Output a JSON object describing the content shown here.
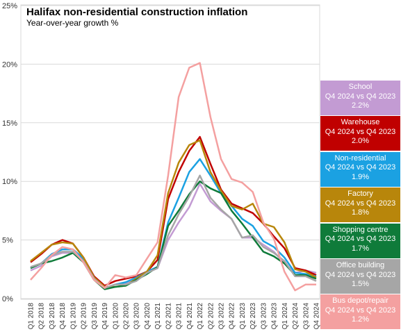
{
  "chart_data": {
    "type": "line",
    "title": "Halifax non-residential  construction inflation",
    "subtitle": "Year-over-year  growth %",
    "ylim": [
      0,
      25
    ],
    "yticks": [
      "0%",
      "5%",
      "10%",
      "15%",
      "20%",
      "25%"
    ],
    "grid": true,
    "legend_position": "right",
    "categories": [
      "Q1 2018",
      "Q2 2018",
      "Q3 2018",
      "Q4 2018",
      "Q1 2019",
      "Q2 2019",
      "Q3 2019",
      "Q4 2019",
      "Q1 2020",
      "Q2 2020",
      "Q3 2020",
      "Q4 2020",
      "Q1 2021",
      "Q2 2021",
      "Q3 2021",
      "Q4 2021",
      "Q1 2022",
      "Q2 2022",
      "Q3 2022",
      "Q4 2022",
      "Q1 2023",
      "Q2 2023",
      "Q3 2023",
      "Q4 2023",
      "Q1 2024",
      "Q2 2024",
      "Q3 2024",
      "Q4 2024"
    ],
    "series": [
      {
        "name": "School",
        "color": "#c39bd3",
        "line1": "School",
        "line2": "Q4 2024 vs Q4 2023",
        "line3": "2.2%",
        "values": [
          2.4,
          2.8,
          3.6,
          3.9,
          3.9,
          3.4,
          1.8,
          0.9,
          1.2,
          1.3,
          1.6,
          2.2,
          2.6,
          5.0,
          6.5,
          7.8,
          9.8,
          8.3,
          7.5,
          6.8,
          5.2,
          5.2,
          4.6,
          4.0,
          3.0,
          2.2,
          2.4,
          2.2
        ]
      },
      {
        "name": "Warehouse",
        "color": "#c00000",
        "line1": "Warehouse",
        "line2": "Q4 2024 vs Q4 2023",
        "line3": "2.0%",
        "values": [
          3.1,
          3.8,
          4.6,
          5.0,
          4.7,
          3.5,
          1.9,
          1.1,
          1.5,
          1.7,
          1.9,
          2.3,
          3.3,
          8.5,
          10.8,
          12.6,
          13.8,
          11.5,
          9.3,
          8.1,
          7.7,
          7.3,
          6.4,
          5.3,
          4.3,
          2.6,
          2.4,
          2.0
        ]
      },
      {
        "name": "Non-residential",
        "color": "#1ba1e2",
        "line1": "Non-residential",
        "line2": "Q4 2024 vs Q4 2023",
        "line3": "1.9%",
        "values": [
          2.6,
          3.0,
          3.8,
          4.2,
          4.2,
          3.4,
          1.8,
          0.9,
          1.2,
          1.4,
          1.8,
          2.3,
          2.7,
          6.5,
          8.6,
          10.8,
          11.9,
          10.5,
          9.0,
          7.9,
          6.8,
          6.2,
          4.9,
          4.4,
          3.5,
          2.2,
          2.1,
          1.9
        ]
      },
      {
        "name": "Factory",
        "color": "#b8860b",
        "line1": "Factory",
        "line2": "Q4 2024 vs Q4 2023",
        "line3": "1.8%",
        "values": [
          3.2,
          3.9,
          4.6,
          4.8,
          4.7,
          3.5,
          1.8,
          1.0,
          1.0,
          1.1,
          1.7,
          2.3,
          3.7,
          9.0,
          11.6,
          13.1,
          13.5,
          10.8,
          9.2,
          7.9,
          7.6,
          8.1,
          6.4,
          6.1,
          4.8,
          2.5,
          2.3,
          1.8
        ]
      },
      {
        "name": "Shopping centre",
        "color": "#0f7b3a",
        "line1": "Shopping centre",
        "line2": "Q4 2024 vs Q4 2023",
        "line3": "1.7%",
        "values": [
          2.6,
          3.0,
          3.2,
          3.5,
          3.9,
          3.1,
          1.6,
          0.8,
          1.0,
          1.1,
          1.6,
          2.1,
          2.7,
          6.2,
          7.5,
          8.9,
          10.0,
          9.4,
          9.0,
          7.5,
          6.4,
          5.2,
          4.0,
          3.6,
          3.0,
          2.0,
          2.0,
          1.7
        ]
      },
      {
        "name": "Office building",
        "color": "#a6a6a6",
        "line1": "Office building",
        "line2": "Q4 2024 vs Q4 2023",
        "line3": "1.5%",
        "values": [
          2.7,
          3.0,
          3.7,
          4.0,
          4.0,
          3.2,
          1.7,
          0.9,
          1.2,
          1.2,
          1.5,
          2.2,
          2.6,
          5.4,
          7.2,
          8.7,
          10.5,
          8.6,
          7.6,
          6.8,
          5.2,
          5.4,
          4.4,
          3.9,
          3.2,
          1.9,
          1.9,
          1.5
        ]
      },
      {
        "name": "Bus depot/repair",
        "color": "#f4a0a0",
        "line1": "Bus depot/repair",
        "line2": "Q4 2024 vs Q4 2023",
        "line3": "1.2%",
        "values": [
          1.6,
          2.6,
          3.7,
          4.4,
          4.2,
          3.1,
          1.6,
          0.9,
          2.0,
          1.8,
          2.0,
          3.4,
          4.8,
          10.5,
          17.2,
          19.7,
          20.1,
          15.5,
          11.9,
          10.2,
          9.9,
          9.1,
          6.5,
          5.1,
          2.3,
          0.7,
          1.2,
          1.2
        ]
      }
    ]
  }
}
